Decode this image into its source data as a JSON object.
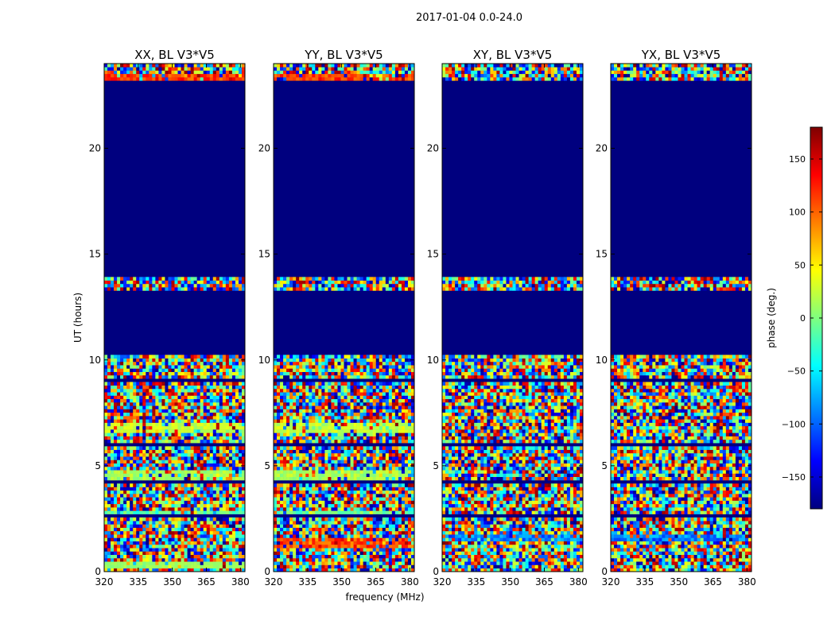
{
  "figure_title": "2017-01-04 0.0-24.0",
  "colors": {
    "jet": [
      "#00007f",
      "#0000ff",
      "#007fff",
      "#00ffff",
      "#7fff7f",
      "#ffff00",
      "#ff7f00",
      "#ff0000",
      "#7f0000"
    ],
    "empty": "#00007f"
  },
  "chart_data": [
    {
      "type": "heatmap",
      "title": "XX, BL V3*V5",
      "xlabel": "",
      "ylabel": "UT (hours)",
      "xlim": [
        320,
        382
      ],
      "ylim": [
        0,
        24
      ],
      "xticks": [
        320,
        335,
        350,
        365,
        380
      ],
      "yticks": [
        0,
        5,
        10,
        15,
        20
      ],
      "blank_rows": [
        [
          22.5,
          23.2
        ],
        [
          13.9,
          22.5
        ],
        [
          10.3,
          13.3
        ],
        [
          8.95,
          9.1
        ],
        [
          7.45,
          7.55
        ],
        [
          6.0,
          6.1
        ],
        [
          4.2,
          4.3
        ],
        [
          2.5,
          2.65
        ]
      ],
      "smooth_bands": [
        [
          22.6,
          23.5,
          90,
          140
        ],
        [
          4.4,
          4.8,
          0,
          30
        ],
        [
          6.6,
          7.0,
          10,
          40
        ],
        [
          2.7,
          2.85,
          -30,
          10
        ],
        [
          0.2,
          0.5,
          0,
          20
        ]
      ]
    },
    {
      "type": "heatmap",
      "title": "YY, BL V3*V5",
      "xlabel": "frequency (MHz)",
      "ylabel": "",
      "xlim": [
        320,
        382
      ],
      "ylim": [
        0,
        24
      ],
      "xticks": [
        320,
        335,
        350,
        365,
        380
      ],
      "yticks": [
        0,
        5,
        10,
        15,
        20
      ],
      "blank_rows": [
        [
          22.5,
          23.2
        ],
        [
          13.9,
          22.5
        ],
        [
          10.3,
          13.3
        ],
        [
          8.95,
          9.1
        ],
        [
          7.45,
          7.55
        ],
        [
          6.0,
          6.1
        ],
        [
          4.2,
          4.3
        ],
        [
          2.5,
          2.65
        ]
      ],
      "smooth_bands": [
        [
          22.6,
          23.5,
          90,
          140
        ],
        [
          4.4,
          4.8,
          0,
          30
        ],
        [
          6.6,
          7.0,
          10,
          40
        ],
        [
          2.7,
          2.85,
          -30,
          10
        ],
        [
          1.2,
          1.6,
          80,
          140
        ]
      ]
    },
    {
      "type": "heatmap",
      "title": "XY, BL V3*V5",
      "xlabel": "",
      "ylabel": "",
      "xlim": [
        320,
        382
      ],
      "ylim": [
        0,
        24
      ],
      "xticks": [
        320,
        335,
        350,
        365,
        380
      ],
      "yticks": [
        0,
        5,
        10,
        15,
        20
      ],
      "blank_rows": [
        [
          22.5,
          23.2
        ],
        [
          13.9,
          22.5
        ],
        [
          10.3,
          13.3
        ],
        [
          8.95,
          9.1
        ],
        [
          7.45,
          7.55
        ],
        [
          6.0,
          6.1
        ],
        [
          4.2,
          4.3
        ],
        [
          2.5,
          2.65
        ]
      ],
      "smooth_bands": [
        [
          1.4,
          1.7,
          -120,
          -60
        ]
      ]
    },
    {
      "type": "heatmap",
      "title": "YX, BL V3*V5",
      "xlabel": "",
      "ylabel": "",
      "xlim": [
        320,
        382
      ],
      "ylim": [
        0,
        24
      ],
      "xticks": [
        320,
        335,
        350,
        365,
        380
      ],
      "yticks": [
        0,
        5,
        10,
        15,
        20
      ],
      "blank_rows": [
        [
          22.5,
          23.2
        ],
        [
          13.9,
          22.5
        ],
        [
          10.3,
          13.3
        ],
        [
          8.95,
          9.1
        ],
        [
          7.45,
          7.55
        ],
        [
          6.0,
          6.1
        ],
        [
          4.2,
          4.3
        ],
        [
          2.5,
          2.65
        ]
      ],
      "smooth_bands": [
        [
          1.4,
          1.7,
          -120,
          -60
        ]
      ]
    }
  ],
  "colorbar": {
    "label": "phase (deg.)",
    "range": [
      -180,
      180
    ],
    "ticks": [
      150,
      100,
      50,
      0,
      -50,
      -100,
      -150
    ],
    "tick_labels": [
      "150",
      "100",
      "50",
      "0",
      "−50",
      "−100",
      "−150"
    ]
  }
}
